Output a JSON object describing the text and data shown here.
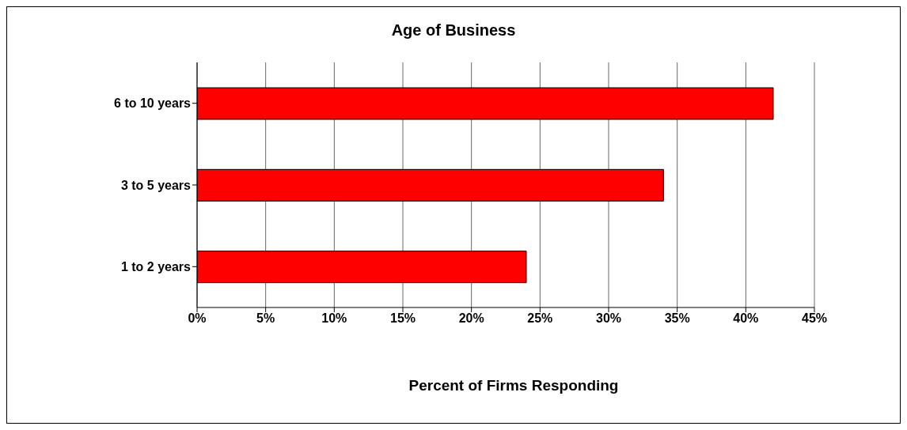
{
  "chart_data": {
    "type": "bar",
    "orientation": "horizontal",
    "title": "Age of Business",
    "xlabel": "Percent of Firms Responding",
    "categories": [
      "6 to 10 years",
      "3 to 5 years",
      "1 to 2 years"
    ],
    "values": [
      42,
      34,
      24
    ],
    "color": "#ff0000",
    "xlim": [
      0,
      45
    ],
    "xticks": [
      {
        "value": 0,
        "label": "0%"
      },
      {
        "value": 5,
        "label": "5%"
      },
      {
        "value": 10,
        "label": "10%"
      },
      {
        "value": 15,
        "label": "15%"
      },
      {
        "value": 20,
        "label": "20%"
      },
      {
        "value": 25,
        "label": "25%"
      },
      {
        "value": 30,
        "label": "30%"
      },
      {
        "value": 35,
        "label": "35%"
      },
      {
        "value": 40,
        "label": "40%"
      },
      {
        "value": 45,
        "label": "45%"
      }
    ],
    "grid": "x",
    "legend": false
  }
}
